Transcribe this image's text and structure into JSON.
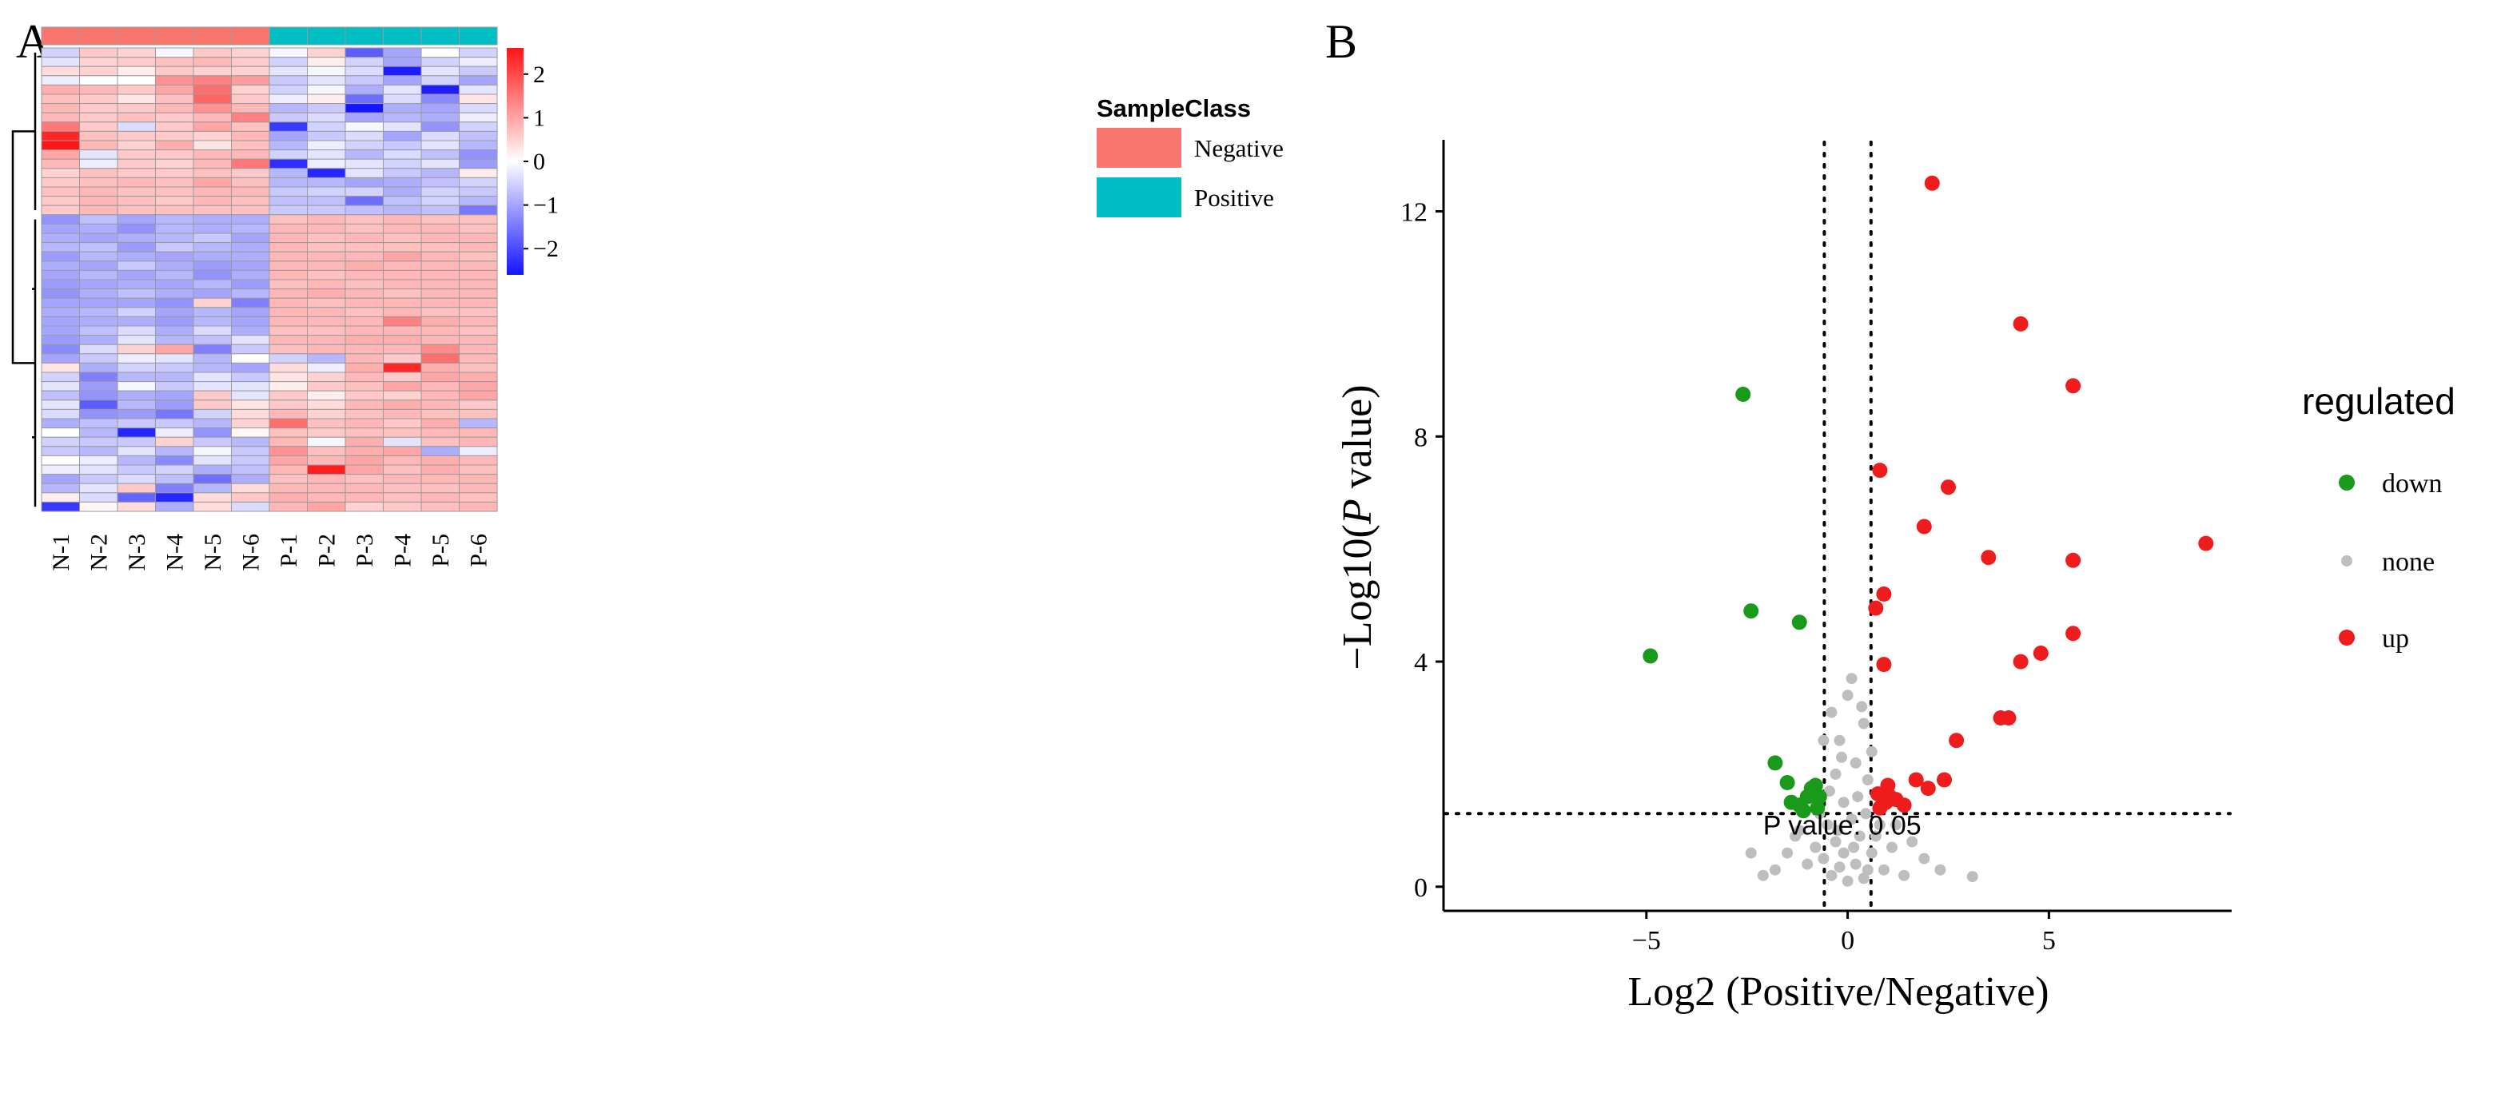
{
  "panel_labels": {
    "a": "A",
    "b": "B"
  },
  "chart_data": [
    {
      "type": "heatmap",
      "panel": "A",
      "title": "",
      "columns": [
        "N-1",
        "N-2",
        "N-3",
        "N-4",
        "N-5",
        "N-6",
        "P-1",
        "P-2",
        "P-3",
        "P-4",
        "P-5",
        "P-6"
      ],
      "column_classes": [
        "Negative",
        "Negative",
        "Negative",
        "Negative",
        "Negative",
        "Negative",
        "Positive",
        "Positive",
        "Positive",
        "Positive",
        "Positive",
        "Positive"
      ],
      "legend": {
        "title": "SampleClass",
        "entries": [
          {
            "label": "Negative",
            "color": "#F8766D"
          },
          {
            "label": "Positive",
            "color": "#00BFC4"
          }
        ]
      },
      "colorbar": {
        "range": [
          -2.6,
          2.6
        ],
        "ticks": [
          2,
          1,
          0,
          -1,
          -2
        ],
        "tick_labels": [
          "2",
          "1",
          "0",
          "−1",
          "−2"
        ],
        "low": "#1414FF",
        "mid": "#FFFFFF",
        "high": "#FF1414"
      },
      "row_count": 50,
      "values": [
        [
          -0.5,
          0.6,
          0.5,
          -0.1,
          0.6,
          0.5,
          -0.1,
          0.5,
          -1.8,
          -1.0,
          0.0,
          -0.5
        ],
        [
          -0.3,
          0.5,
          0.6,
          0.7,
          0.8,
          0.6,
          -0.5,
          0.2,
          -0.5,
          -1.0,
          -0.5,
          -0.2
        ],
        [
          0.4,
          0.5,
          0.2,
          0.6,
          0.5,
          0.5,
          -0.3,
          -0.1,
          -0.4,
          -2.5,
          -0.3,
          -0.6
        ],
        [
          -0.2,
          0.0,
          0.0,
          1.2,
          1.4,
          1.1,
          -0.6,
          -0.3,
          -0.6,
          -1.0,
          -0.5,
          -1.0
        ],
        [
          0.9,
          0.8,
          0.6,
          1.0,
          1.6,
          0.5,
          -0.5,
          -0.1,
          -0.9,
          -0.3,
          -2.5,
          -0.3
        ],
        [
          0.7,
          0.6,
          0.3,
          0.7,
          1.7,
          0.6,
          -0.2,
          0.2,
          -1.6,
          -0.4,
          -1.3,
          0.3
        ],
        [
          0.8,
          0.6,
          0.6,
          0.8,
          1.2,
          0.8,
          -0.8,
          -0.6,
          -2.6,
          -0.9,
          -1.0,
          -0.4
        ],
        [
          0.8,
          0.6,
          0.7,
          0.6,
          0.8,
          1.4,
          -0.6,
          -0.4,
          -1.0,
          -0.8,
          -0.9,
          -0.2
        ],
        [
          1.5,
          0.6,
          -0.4,
          0.6,
          1.0,
          0.7,
          -2.2,
          -0.5,
          -0.1,
          -0.3,
          -1.2,
          -0.5
        ],
        [
          2.4,
          0.7,
          0.6,
          0.6,
          0.5,
          0.8,
          -1.0,
          -0.6,
          -0.4,
          -1.0,
          -0.4,
          -0.7
        ],
        [
          2.6,
          0.8,
          0.5,
          0.9,
          0.3,
          0.7,
          -0.8,
          -0.2,
          -0.5,
          -0.6,
          -0.3,
          -0.8
        ],
        [
          1.0,
          -0.3,
          0.6,
          0.6,
          0.8,
          0.8,
          -0.5,
          -0.3,
          -0.8,
          -0.4,
          -0.7,
          -1.2
        ],
        [
          0.8,
          -0.2,
          0.6,
          0.5,
          0.8,
          1.5,
          -2.3,
          -0.2,
          -0.3,
          -0.5,
          -0.3,
          -1.1
        ],
        [
          0.5,
          0.7,
          0.6,
          0.6,
          0.7,
          0.6,
          -0.8,
          -2.4,
          -0.3,
          -0.6,
          -0.8,
          0.2
        ],
        [
          0.6,
          0.7,
          0.8,
          0.7,
          1.0,
          0.7,
          -0.8,
          -0.8,
          -1.0,
          -0.9,
          -0.7,
          -0.5
        ],
        [
          0.7,
          0.8,
          0.7,
          0.7,
          0.8,
          0.8,
          -0.6,
          -0.5,
          -0.5,
          -0.9,
          -0.5,
          -0.6
        ],
        [
          0.6,
          0.8,
          0.7,
          0.6,
          0.8,
          0.7,
          -0.7,
          -0.7,
          -1.6,
          -0.7,
          -0.5,
          -0.8
        ],
        [
          0.6,
          0.8,
          0.7,
          0.7,
          0.7,
          0.7,
          -0.6,
          -0.6,
          -0.7,
          -0.8,
          -0.7,
          -1.5
        ],
        [
          -1.2,
          -0.7,
          -1.0,
          -0.8,
          -0.9,
          -0.9,
          0.7,
          0.8,
          0.7,
          0.8,
          0.7,
          0.7
        ],
        [
          -1.0,
          -0.9,
          -1.2,
          -0.8,
          -0.9,
          -0.8,
          0.8,
          0.8,
          0.7,
          0.8,
          0.8,
          0.7
        ],
        [
          -0.9,
          -1.0,
          -0.9,
          -0.8,
          -0.6,
          -1.0,
          0.8,
          0.7,
          0.8,
          0.7,
          0.8,
          0.8
        ],
        [
          -0.8,
          -0.7,
          -1.1,
          -0.6,
          -0.8,
          -0.9,
          0.8,
          0.7,
          0.7,
          0.7,
          0.7,
          0.8
        ],
        [
          -1.1,
          -0.8,
          -0.9,
          -1.0,
          -0.9,
          -0.9,
          0.8,
          0.8,
          0.8,
          1.0,
          0.8,
          0.7
        ],
        [
          -0.9,
          -1.0,
          -0.6,
          -0.9,
          -1.1,
          -1.0,
          0.8,
          0.8,
          0.9,
          0.8,
          0.8,
          0.8
        ],
        [
          -1.0,
          -0.8,
          -1.0,
          -0.8,
          -1.2,
          -0.9,
          0.8,
          0.7,
          0.8,
          0.8,
          0.8,
          0.8
        ],
        [
          -1.1,
          -1.0,
          -0.9,
          -1.0,
          -0.8,
          -1.1,
          0.7,
          0.8,
          0.7,
          0.8,
          0.8,
          0.8
        ],
        [
          -1.2,
          -0.9,
          -0.7,
          -0.9,
          -1.0,
          -0.8,
          0.8,
          0.9,
          0.8,
          0.7,
          0.8,
          0.8
        ],
        [
          -1.0,
          -1.0,
          -1.0,
          -1.2,
          0.5,
          -1.4,
          0.8,
          0.7,
          0.8,
          0.8,
          0.8,
          0.8
        ],
        [
          -0.9,
          -0.8,
          -0.5,
          -1.0,
          -0.8,
          -1.0,
          0.8,
          0.8,
          0.7,
          0.8,
          0.7,
          0.7
        ],
        [
          -1.0,
          -0.9,
          -0.9,
          -1.1,
          -0.8,
          -1.0,
          0.8,
          0.8,
          0.8,
          1.4,
          0.9,
          0.8
        ],
        [
          -1.0,
          -0.7,
          -0.4,
          -0.9,
          -0.4,
          -0.9,
          0.7,
          0.7,
          0.8,
          0.8,
          0.8,
          0.7
        ],
        [
          -1.1,
          -0.9,
          -0.3,
          -0.8,
          -0.7,
          -0.3,
          0.8,
          0.8,
          0.9,
          0.9,
          0.8,
          0.8
        ],
        [
          -1.3,
          -0.4,
          0.5,
          1.0,
          -1.4,
          -0.6,
          0.7,
          0.8,
          0.8,
          0.8,
          1.3,
          0.8
        ],
        [
          -1.0,
          -0.6,
          -0.2,
          -0.3,
          -0.8,
          0.0,
          -0.5,
          -0.8,
          0.8,
          0.6,
          1.6,
          0.8
        ],
        [
          0.3,
          -0.9,
          -0.5,
          -0.6,
          -0.8,
          -1.0,
          0.4,
          -0.2,
          0.9,
          2.4,
          0.9,
          0.7
        ],
        [
          -0.5,
          -1.4,
          -0.8,
          -0.8,
          -0.3,
          -0.6,
          0.3,
          0.5,
          0.8,
          0.6,
          1.0,
          0.9
        ],
        [
          -0.3,
          -1.1,
          -0.1,
          -0.6,
          -0.3,
          -0.3,
          0.2,
          0.6,
          0.7,
          1.0,
          0.8,
          1.0
        ],
        [
          -0.7,
          -1.2,
          -0.9,
          -1.0,
          0.6,
          -0.3,
          0.6,
          0.2,
          0.6,
          0.5,
          0.8,
          1.0
        ],
        [
          -0.3,
          -1.8,
          -0.8,
          -1.1,
          0.6,
          0.3,
          0.6,
          0.4,
          0.8,
          0.9,
          0.8,
          0.6
        ],
        [
          -0.4,
          -1.2,
          -1.1,
          -1.5,
          -0.5,
          0.4,
          0.8,
          0.5,
          0.7,
          0.8,
          0.7,
          0.7
        ],
        [
          -0.9,
          -0.7,
          -0.6,
          -0.6,
          -0.8,
          0.5,
          1.6,
          0.7,
          0.8,
          0.6,
          0.9,
          -0.8
        ],
        [
          0.0,
          -0.8,
          -2.4,
          -0.2,
          -1.2,
          0.1,
          0.7,
          0.6,
          0.7,
          0.7,
          0.8,
          0.8
        ],
        [
          -0.5,
          -0.6,
          -0.6,
          0.5,
          -0.6,
          -0.8,
          0.8,
          -0.1,
          0.9,
          -0.3,
          0.7,
          0.8
        ],
        [
          -0.6,
          -0.8,
          -0.3,
          -0.8,
          -0.1,
          -0.6,
          1.2,
          0.7,
          0.9,
          1.0,
          -0.9,
          -0.2
        ],
        [
          0.0,
          -0.2,
          -0.8,
          -1.3,
          -0.3,
          -0.6,
          1.0,
          0.8,
          1.0,
          0.8,
          0.9,
          0.8
        ],
        [
          -0.2,
          -0.3,
          -0.6,
          -0.5,
          -0.9,
          -0.7,
          0.8,
          2.5,
          1.0,
          0.7,
          0.9,
          0.7
        ],
        [
          -1.0,
          -0.6,
          -0.4,
          -0.7,
          -1.6,
          -0.9,
          0.7,
          0.8,
          0.7,
          0.8,
          0.8,
          0.8
        ],
        [
          -0.8,
          -0.3,
          0.6,
          -1.4,
          -0.8,
          0.4,
          0.8,
          0.8,
          0.8,
          0.7,
          0.7,
          0.8
        ],
        [
          0.2,
          -0.4,
          -1.7,
          -2.4,
          0.4,
          0.6,
          0.9,
          0.8,
          0.8,
          0.7,
          0.8,
          0.7
        ],
        [
          -2.2,
          0.1,
          0.4,
          -0.9,
          0.4,
          -0.4,
          0.8,
          1.0,
          0.5,
          0.6,
          0.7,
          0.8
        ]
      ]
    },
    {
      "type": "scatter",
      "panel": "B",
      "title": "",
      "xlabel": "Log2 (Positive/Negative)",
      "ylabel_prefix": "−Log10(",
      "ylabel_italic": "P",
      "ylabel_suffix": " value)",
      "xlim": [
        -10,
        9.5
      ],
      "ylim": [
        -0.4,
        13.2
      ],
      "x_ticks": [
        -5,
        0,
        5
      ],
      "x_tick_labels": [
        "−5",
        "0",
        "5"
      ],
      "y_ticks": [
        0,
        4,
        8,
        12
      ],
      "y_tick_labels": [
        "0",
        "4",
        "8",
        "12"
      ],
      "thresholds": {
        "x": [
          -0.58,
          0.58
        ],
        "y": 1.3,
        "label": "P value: 0.05"
      },
      "legend": {
        "title": "regulated",
        "entries": [
          {
            "label": "down",
            "color": "#1A9A1A"
          },
          {
            "label": "none",
            "color": "#BEBEBE"
          },
          {
            "label": "up",
            "color": "#EE1C1C"
          }
        ]
      },
      "series": [
        {
          "name": "down",
          "color": "#1A9A1A",
          "points": [
            [
              -2.6,
              8.75
            ],
            [
              -2.4,
              4.9
            ],
            [
              -1.2,
              4.7
            ],
            [
              -4.9,
              4.1
            ],
            [
              -1.8,
              2.2
            ],
            [
              -1.5,
              1.85
            ],
            [
              -1.4,
              1.5
            ],
            [
              -1.2,
              1.45
            ],
            [
              -1.0,
              1.6
            ],
            [
              -0.8,
              1.8
            ],
            [
              -0.7,
              1.6
            ],
            [
              -1.1,
              1.35
            ],
            [
              -0.9,
              1.75
            ],
            [
              -0.75,
              1.4
            ]
          ]
        },
        {
          "name": "up",
          "color": "#EE1C1C",
          "points": [
            [
              2.1,
              12.5
            ],
            [
              4.3,
              10.0
            ],
            [
              5.6,
              8.9
            ],
            [
              0.8,
              7.4
            ],
            [
              2.5,
              7.1
            ],
            [
              1.9,
              6.4
            ],
            [
              8.9,
              6.1
            ],
            [
              3.5,
              5.85
            ],
            [
              5.6,
              5.8
            ],
            [
              0.9,
              5.2
            ],
            [
              0.7,
              4.95
            ],
            [
              5.6,
              4.5
            ],
            [
              4.8,
              4.15
            ],
            [
              4.3,
              4.0
            ],
            [
              0.9,
              3.95
            ],
            [
              3.8,
              3.0
            ],
            [
              4.0,
              3.0
            ],
            [
              2.7,
              2.6
            ],
            [
              2.4,
              1.9
            ],
            [
              1.7,
              1.9
            ],
            [
              1.0,
              1.8
            ],
            [
              2.0,
              1.75
            ],
            [
              0.75,
              1.65
            ],
            [
              0.95,
              1.5
            ],
            [
              1.2,
              1.55
            ],
            [
              1.4,
              1.45
            ],
            [
              0.8,
              1.4
            ],
            [
              1.05,
              1.6
            ]
          ]
        },
        {
          "name": "none",
          "color": "#BEBEBE",
          "points": [
            [
              -0.4,
              0.2
            ],
            [
              -0.2,
              0.35
            ],
            [
              0.0,
              0.1
            ],
            [
              0.2,
              0.4
            ],
            [
              0.4,
              0.15
            ],
            [
              -0.6,
              0.5
            ],
            [
              0.6,
              0.6
            ],
            [
              -0.3,
              0.8
            ],
            [
              0.3,
              0.9
            ],
            [
              0.1,
              1.2
            ],
            [
              -0.1,
              1.5
            ],
            [
              0.5,
              1.9
            ],
            [
              -0.5,
              1.1
            ],
            [
              0.2,
              2.2
            ],
            [
              -0.2,
              2.6
            ],
            [
              0.4,
              2.9
            ],
            [
              -0.4,
              3.1
            ],
            [
              0.0,
              3.4
            ],
            [
              0.1,
              3.7
            ],
            [
              -0.3,
              2.0
            ],
            [
              0.7,
              0.9
            ],
            [
              -0.8,
              0.7
            ],
            [
              0.9,
              0.3
            ],
            [
              -1.0,
              0.4
            ],
            [
              1.1,
              0.7
            ],
            [
              -1.3,
              0.9
            ],
            [
              1.4,
              0.2
            ],
            [
              -1.5,
              0.6
            ],
            [
              1.6,
              0.8
            ],
            [
              -1.8,
              0.3
            ],
            [
              1.9,
              0.5
            ],
            [
              -2.1,
              0.2
            ],
            [
              2.3,
              0.3
            ],
            [
              3.1,
              0.18
            ],
            [
              -2.4,
              0.6
            ],
            [
              0.8,
              1.1
            ],
            [
              -0.7,
              1.3
            ],
            [
              0.5,
              0.3
            ],
            [
              -0.1,
              0.6
            ],
            [
              0.25,
              1.6
            ],
            [
              -0.25,
              1.0
            ],
            [
              0.6,
              2.4
            ],
            [
              -0.6,
              2.6
            ],
            [
              0.35,
              3.2
            ],
            [
              -0.15,
              2.3
            ],
            [
              0.15,
              0.7
            ],
            [
              -0.45,
              1.7
            ],
            [
              0.45,
              1.3
            ],
            [
              1.2,
              1.1
            ],
            [
              -1.2,
              1.0
            ]
          ]
        }
      ]
    }
  ]
}
